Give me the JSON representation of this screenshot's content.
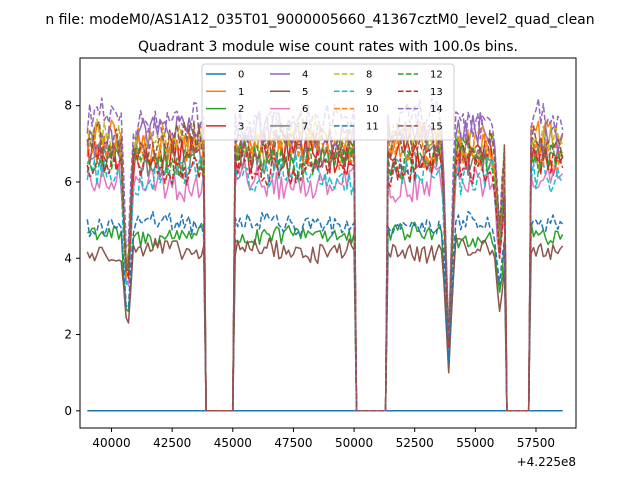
{
  "chart_data": {
    "type": "line",
    "suptitle": "n file: modeM0/AS1A12_035T01_9000005660_41367cztM0_level2_quad_clean",
    "title": "Quadrant 3 module wise count rates with 100.0s bins.",
    "xlabel": "",
    "ylabel": "",
    "x_offset_label": "+4.225e8",
    "xlim": [
      38700,
      59150
    ],
    "ylim": [
      -0.45,
      9.25
    ],
    "xticks": [
      40000,
      42500,
      45000,
      47500,
      50000,
      52500,
      55000,
      57500
    ],
    "xtick_labels": [
      "40000",
      "42500",
      "45000",
      "47500",
      "50000",
      "52500",
      "55000",
      "57500"
    ],
    "yticks": [
      0,
      2,
      4,
      6,
      8
    ],
    "ytick_labels": [
      "0",
      "2",
      "4",
      "6",
      "8"
    ],
    "grid": false,
    "legend": {
      "placement": "top-center",
      "columns": 4
    },
    "gaps": [
      [
        43900,
        45000
      ],
      [
        50100,
        51300
      ],
      [
        56300,
        57200
      ]
    ],
    "dips": [
      {
        "x": 40650,
        "depth": 0.55
      },
      {
        "x": 53900,
        "depth": 0.75
      },
      {
        "x": 56000,
        "depth": 0.35
      }
    ],
    "series": [
      {
        "name": "0",
        "color": "#1f77b4",
        "style": "solid",
        "base": 0.0,
        "amp": 0.0
      },
      {
        "name": "1",
        "color": "#ff7f0e",
        "style": "solid",
        "base": 7.0,
        "amp": 0.45
      },
      {
        "name": "2",
        "color": "#2ca02c",
        "style": "solid",
        "base": 4.6,
        "amp": 0.25
      },
      {
        "name": "3",
        "color": "#d62728",
        "style": "solid",
        "base": 6.7,
        "amp": 0.4
      },
      {
        "name": "4",
        "color": "#9467bd",
        "style": "solid",
        "base": 7.2,
        "amp": 0.45
      },
      {
        "name": "5",
        "color": "#8c564b",
        "style": "solid",
        "base": 4.2,
        "amp": 0.25
      },
      {
        "name": "6",
        "color": "#e377c2",
        "style": "solid",
        "base": 6.0,
        "amp": 0.4
      },
      {
        "name": "7",
        "color": "#7f7f7f",
        "style": "solid",
        "base": 6.6,
        "amp": 0.4
      },
      {
        "name": "8",
        "color": "#bcbd22",
        "style": "dashed",
        "base": 7.1,
        "amp": 0.45
      },
      {
        "name": "9",
        "color": "#17becf",
        "style": "dashed",
        "base": 6.2,
        "amp": 0.4
      },
      {
        "name": "10",
        "color": "#ff7f0e",
        "style": "dashed",
        "base": 6.9,
        "amp": 0.45
      },
      {
        "name": "11",
        "color": "#1f77b4",
        "style": "dashed",
        "base": 4.9,
        "amp": 0.25
      },
      {
        "name": "12",
        "color": "#2ca02c",
        "style": "dashed",
        "base": 6.6,
        "amp": 0.4
      },
      {
        "name": "13",
        "color": "#d62728",
        "style": "dashed",
        "base": 6.4,
        "amp": 0.4
      },
      {
        "name": "14",
        "color": "#9467bd",
        "style": "dashed",
        "base": 7.6,
        "amp": 0.45
      },
      {
        "name": "15",
        "color": "#8c564b",
        "style": "dashed",
        "base": 7.0,
        "amp": 0.45
      }
    ]
  }
}
